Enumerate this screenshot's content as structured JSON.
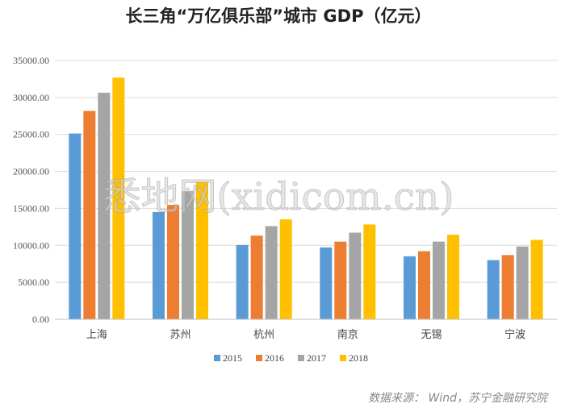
{
  "chart_data": {
    "type": "bar",
    "title": "长三角“万亿俱乐部”城市 GDP（亿元）",
    "categories": [
      "上海",
      "苏州",
      "杭州",
      "南京",
      "无锡",
      "宁波"
    ],
    "series": [
      {
        "name": "2015",
        "color": "#5B9BD5",
        "values": [
          25123,
          14504,
          10050,
          9721,
          8518,
          8003
        ]
      },
      {
        "name": "2016",
        "color": "#ED7D31",
        "values": [
          28179,
          15475,
          11314,
          10503,
          9210,
          8686
        ]
      },
      {
        "name": "2017",
        "color": "#A5A5A5",
        "values": [
          30633,
          17320,
          12603,
          11715,
          10512,
          9842
        ]
      },
      {
        "name": "2018",
        "color": "#FFC000",
        "values": [
          32680,
          18597,
          13509,
          12820,
          11439,
          10746
        ]
      }
    ],
    "ylim": [
      0,
      35000
    ],
    "yticks": [
      "0.00",
      "5000.00",
      "10000.00",
      "15000.00",
      "20000.00",
      "25000.00",
      "30000.00",
      "35000.00"
    ],
    "grid": true,
    "legend_position": "bottom"
  },
  "watermark": "悉地网(xidicom.cn)",
  "source_note": "数据来源： Wind，苏宁金融研究院"
}
